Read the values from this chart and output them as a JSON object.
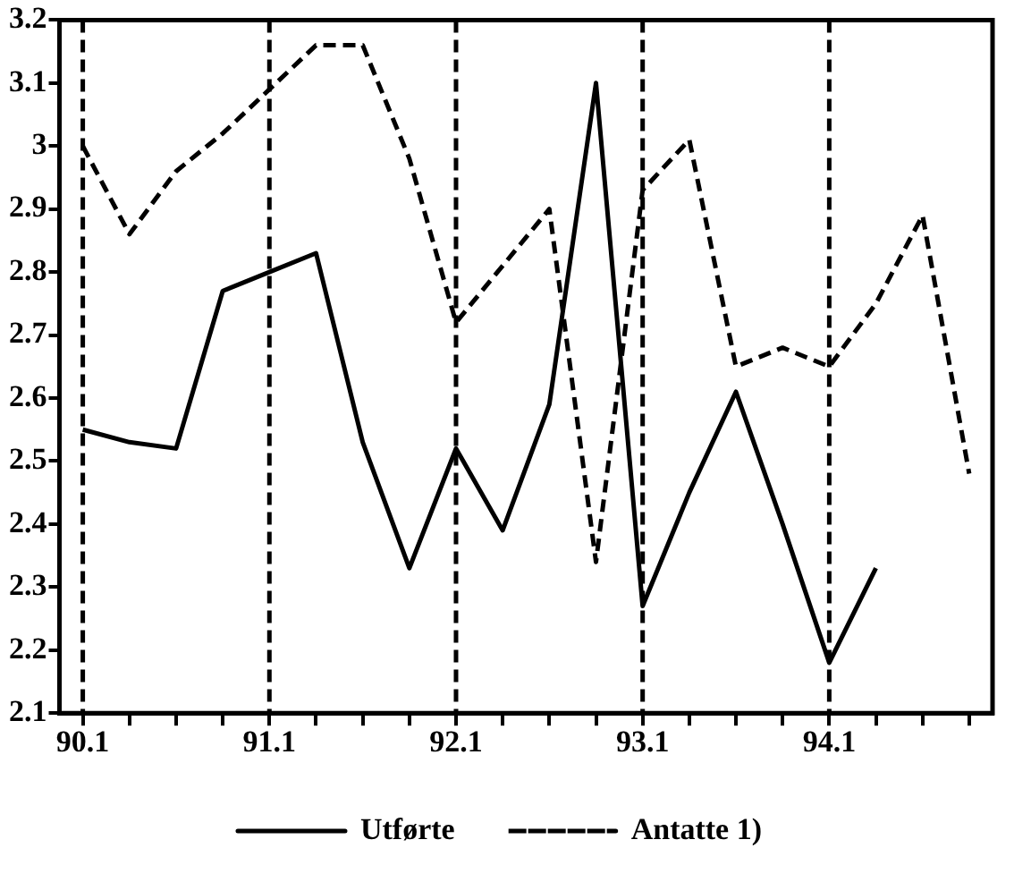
{
  "chart_data": {
    "type": "line",
    "categories": [
      "90.1",
      null,
      null,
      null,
      "91.1",
      null,
      null,
      null,
      "92.1",
      null,
      null,
      null,
      "93.1",
      null,
      null,
      null,
      "94.1",
      null,
      null,
      null
    ],
    "series": [
      {
        "name": "Utførte",
        "color": "#000000",
        "line_style": "solid",
        "values": [
          2.55,
          2.53,
          2.52,
          2.77,
          2.8,
          2.83,
          2.53,
          2.33,
          2.52,
          2.39,
          2.59,
          3.1,
          2.27,
          2.45,
          2.61,
          2.4,
          2.18,
          2.33,
          null,
          null
        ]
      },
      {
        "name": "Antatte 1)",
        "color": "#000000",
        "line_style": "dashed",
        "values": [
          3.0,
          2.86,
          2.96,
          3.02,
          3.09,
          3.16,
          3.16,
          2.98,
          2.72,
          2.81,
          2.9,
          2.34,
          2.93,
          3.01,
          2.65,
          2.68,
          2.65,
          2.75,
          2.89,
          2.48
        ]
      }
    ],
    "ylim": [
      2.1,
      3.2
    ],
    "yticks": [
      2.1,
      2.2,
      2.3,
      2.4,
      2.5,
      2.6,
      2.7,
      2.8,
      2.9,
      3,
      3.1,
      3.2
    ],
    "ref_lines": [
      {
        "axis": "x",
        "value": "90.1",
        "line_style": "dashed",
        "color": "#000000"
      },
      {
        "axis": "x",
        "value": "91.1",
        "line_style": "dashed",
        "color": "#000000"
      },
      {
        "axis": "x",
        "value": "92.1",
        "line_style": "dashed",
        "color": "#000000"
      },
      {
        "axis": "x",
        "value": "93.1",
        "line_style": "dashed",
        "color": "#000000"
      },
      {
        "axis": "x",
        "value": "94.1",
        "line_style": "dashed",
        "color": "#000000"
      }
    ],
    "grid": false,
    "legend": "bottom",
    "marker": "none"
  }
}
